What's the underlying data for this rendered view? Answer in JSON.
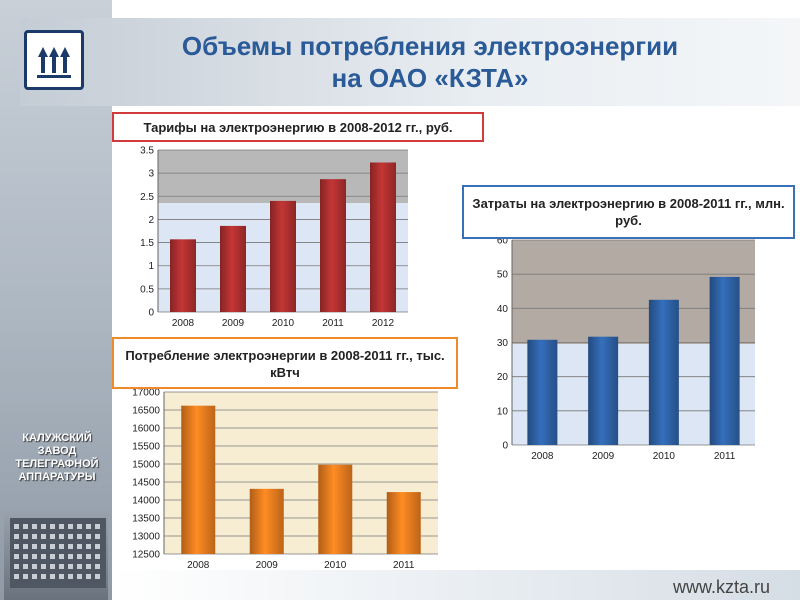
{
  "title_line1": "Объемы потребления электроэнергии",
  "title_line2": "на ОАО «КЗТА»",
  "company_name": [
    "КАЛУЖСКИЙ",
    "ЗАВОД",
    "ТЕЛЕГРАФНОЙ",
    "АППАРАТУРЫ"
  ],
  "website": "www.kzta.ru",
  "chart_data": [
    {
      "type": "bar",
      "title": "Тарифы на электроэнергию в 2008-2012 гг., руб.",
      "categories": [
        "2008",
        "2009",
        "2010",
        "2011",
        "2012"
      ],
      "values": [
        1.57,
        1.86,
        2.4,
        2.87,
        3.23
      ],
      "ylim": [
        0,
        3.5
      ],
      "yticks": [
        "0",
        "0.5",
        "1",
        "1.5",
        "2",
        "2.5",
        "3",
        "3.5"
      ],
      "bar_color": "#b03030",
      "grid": true
    },
    {
      "type": "bar",
      "title": "Затраты на электроэнергию в 2008-2011 гг., млн. руб.",
      "categories": [
        "2008",
        "2009",
        "2010",
        "2011"
      ],
      "values": [
        30.8,
        31.7,
        42.5,
        49.2
      ],
      "ylim": [
        0,
        60
      ],
      "yticks": [
        "0",
        "10",
        "20",
        "30",
        "40",
        "50",
        "60"
      ],
      "bar_color": "#2f63a8",
      "grid": true
    },
    {
      "type": "bar",
      "title": "Потребление электроэнергии в 2008-2011 гг., тыс. кВтч",
      "categories": [
        "2008",
        "2009",
        "2010",
        "2011"
      ],
      "values": [
        16620,
        14310,
        14980,
        14220
      ],
      "ylim": [
        12500,
        17000
      ],
      "yticks": [
        "12500",
        "13000",
        "13500",
        "14000",
        "14500",
        "15000",
        "15500",
        "16000",
        "16500",
        "17000"
      ],
      "bar_color": "#ea7d1f",
      "grid": true
    }
  ]
}
